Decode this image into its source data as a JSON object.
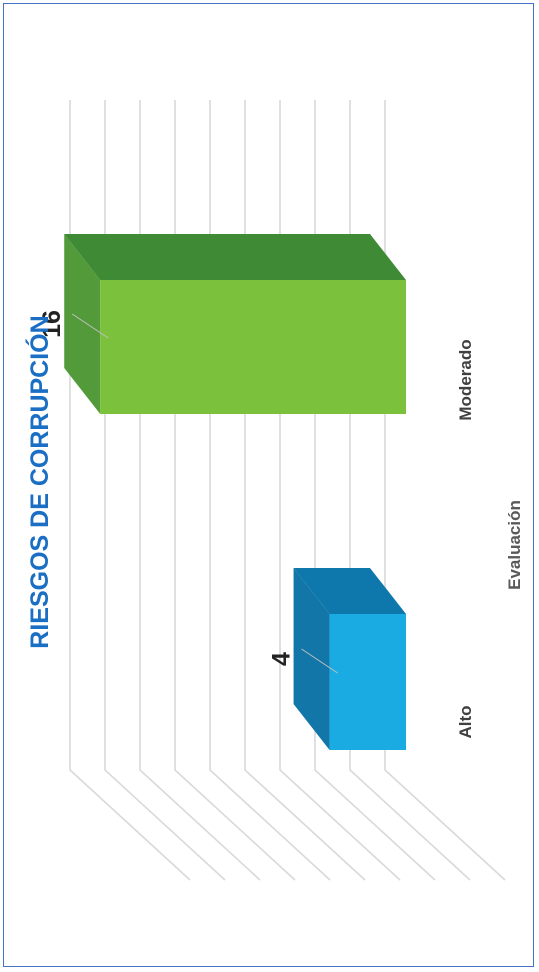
{
  "chart_data": {
    "type": "bar",
    "title": "RIESGOS DE CORRUPCIÓN",
    "categories": [
      "Alto",
      "Moderado"
    ],
    "values": [
      4,
      16
    ],
    "xlabel": "Evaluación",
    "ylabel": "",
    "ylim": [
      0,
      18
    ],
    "grid": true,
    "three_d": true,
    "orientation": "rotated-90-ccw",
    "colors": {
      "Alto": {
        "front": "#1aabe3",
        "top": "#0e78ad",
        "side": "#1276a8"
      },
      "Moderado": {
        "front": "#7cc13c",
        "top": "#3f8a35",
        "side": "#539b3a"
      }
    },
    "title_color": "#1a6fc4",
    "grid_color": "#d9d9d9",
    "frame_color": "#4472c4"
  }
}
